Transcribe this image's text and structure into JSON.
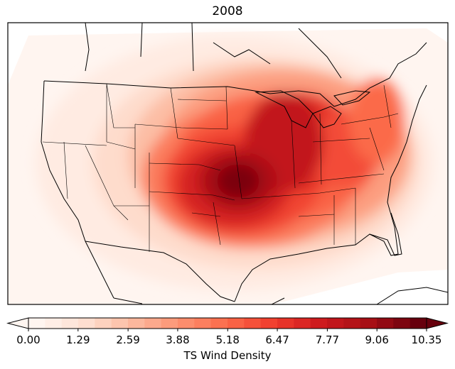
{
  "title": "2008",
  "colorbar": {
    "label": "TS Wind Density",
    "ticks": [
      "0.00",
      "1.29",
      "2.59",
      "3.88",
      "5.18",
      "6.47",
      "7.77",
      "9.06",
      "10.35"
    ],
    "min": 0.0,
    "max": 10.35,
    "levels": 24,
    "extend": "both",
    "colormap": "Reds",
    "color_low": "#fff5f0",
    "color_high": "#67000d"
  },
  "map": {
    "projection": "Lambert Conformal",
    "region": "Continental United States",
    "peak_location": "Kansas / Missouri border",
    "peak_value": 10.35
  }
}
